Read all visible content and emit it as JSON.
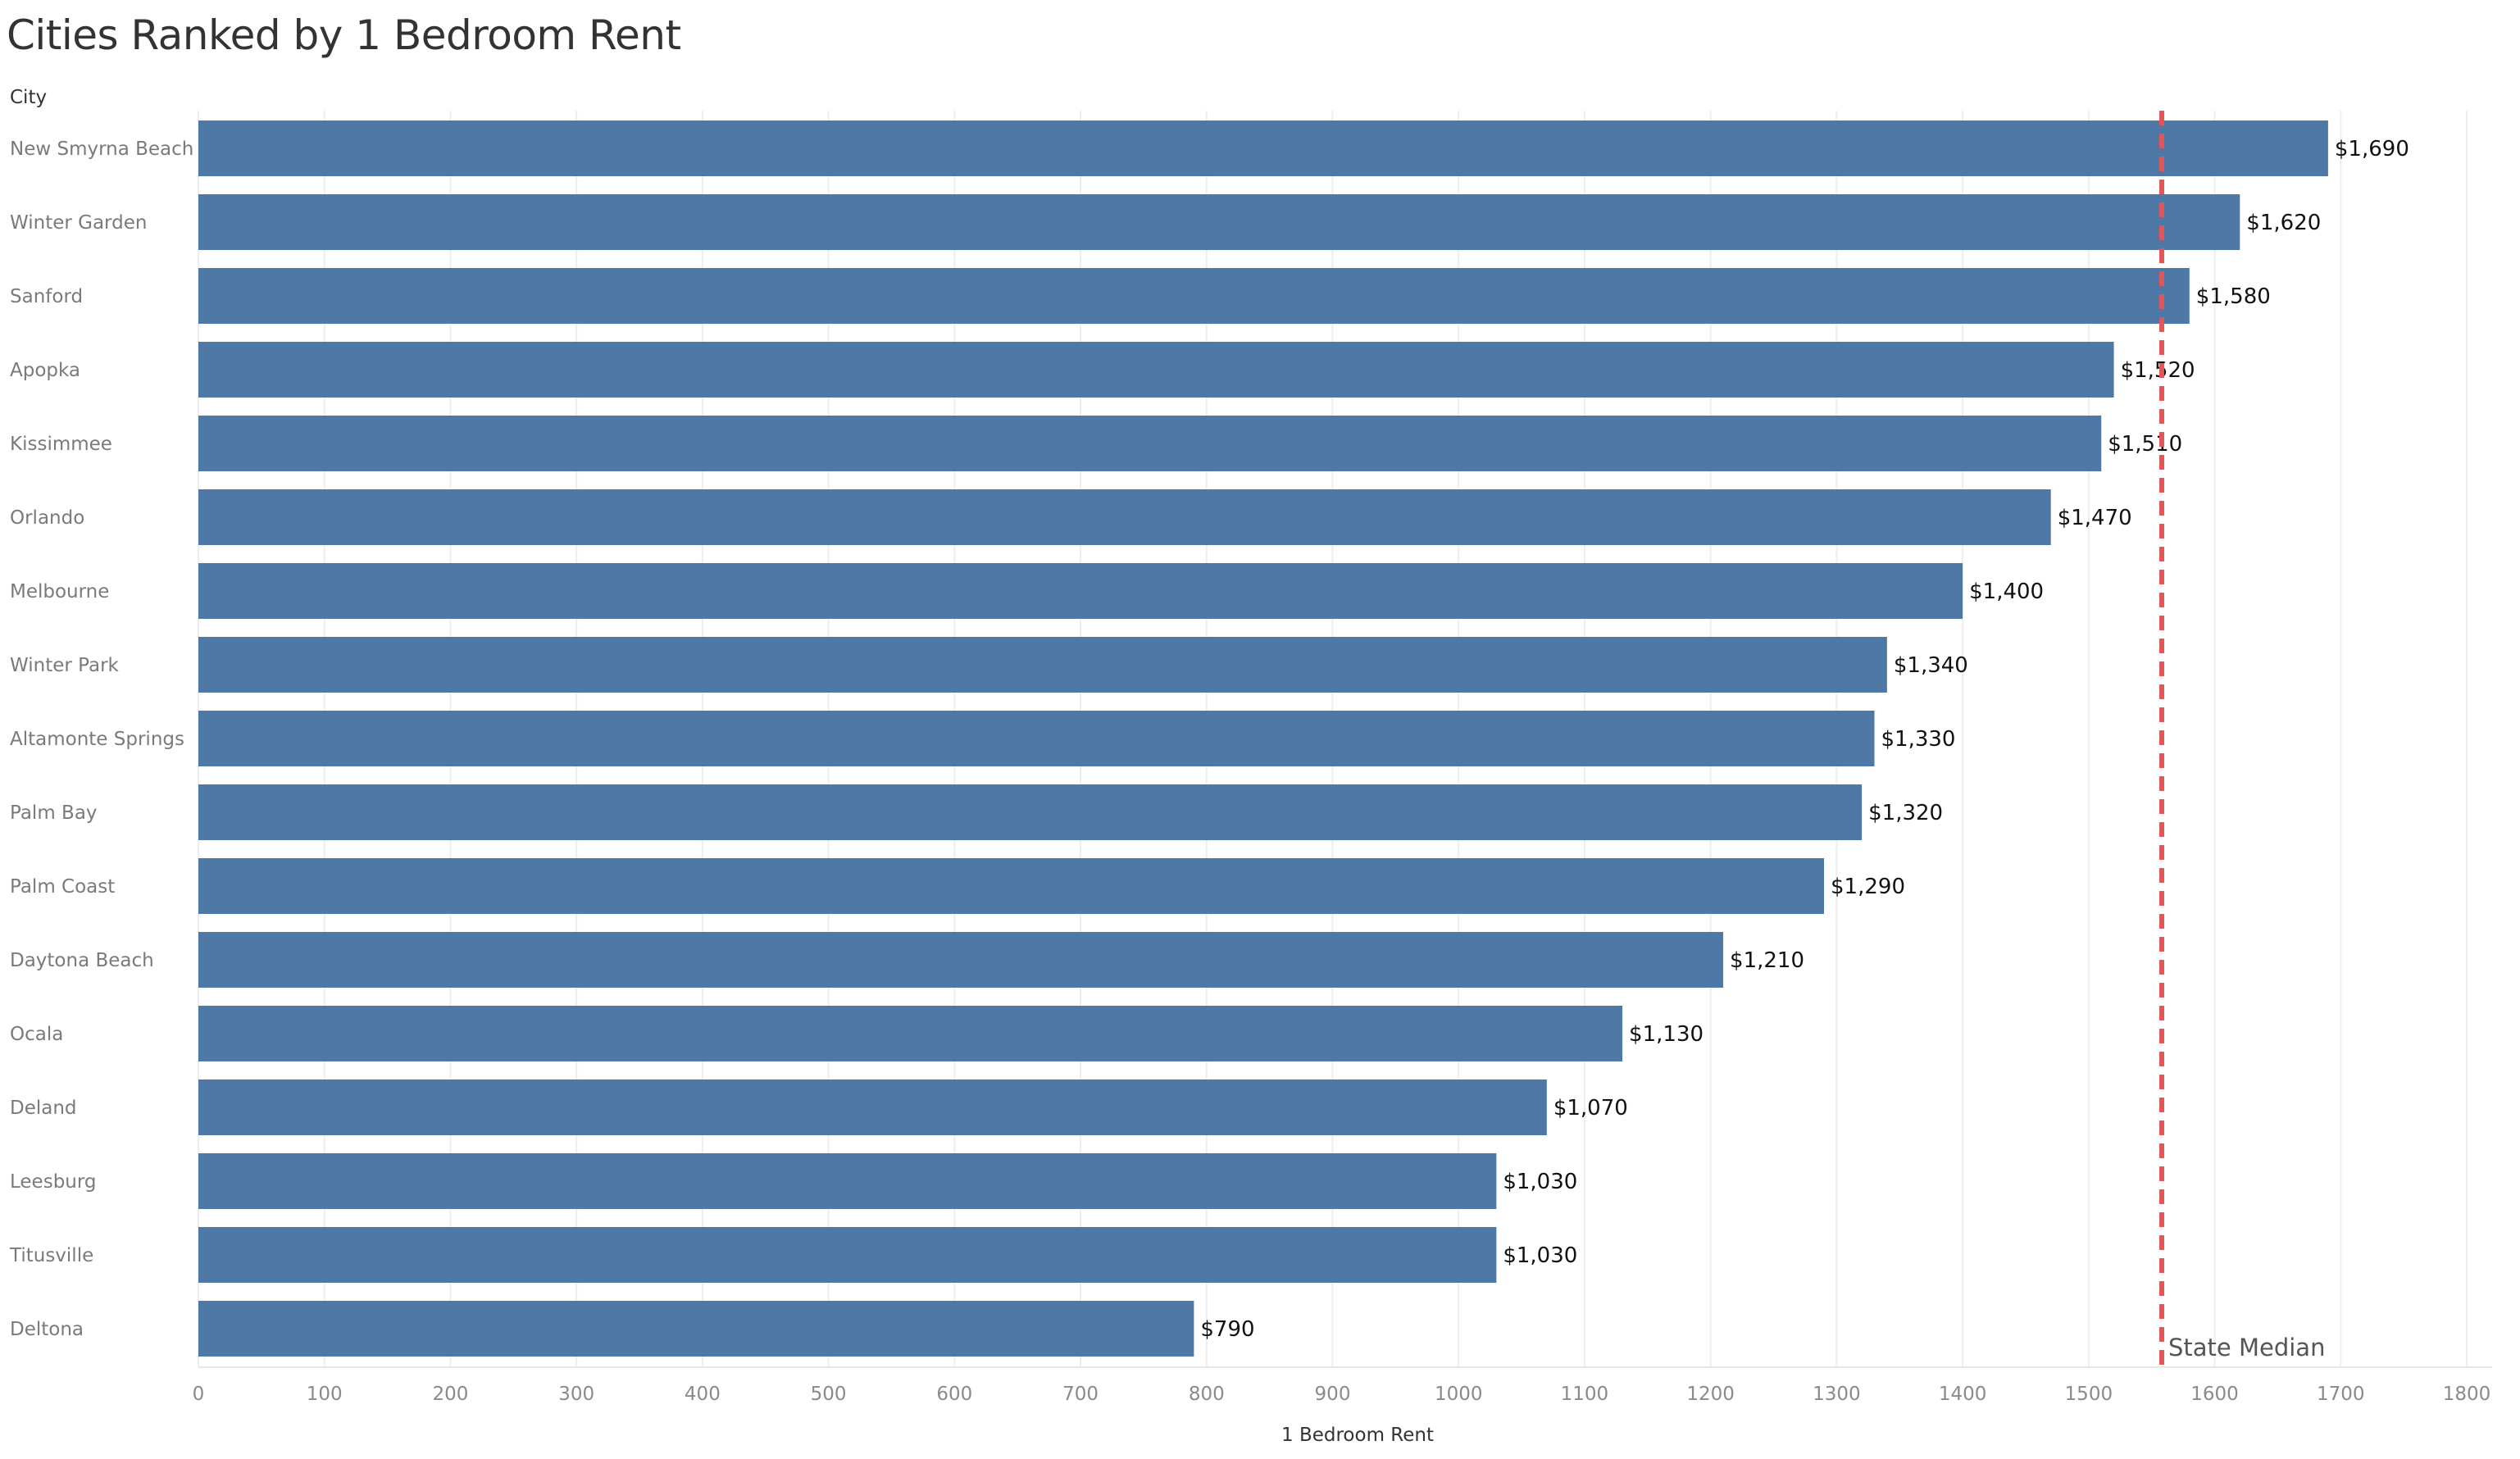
{
  "chart_data": {
    "type": "bar",
    "orientation": "horizontal",
    "title": "Cities Ranked by 1 Bedroom Rent",
    "category_header": "City",
    "xlabel": "1 Bedroom Rent",
    "xlim": [
      0,
      1800
    ],
    "xticks": [
      0,
      100,
      200,
      300,
      400,
      500,
      600,
      700,
      800,
      900,
      1000,
      1100,
      1200,
      1300,
      1400,
      1500,
      1600,
      1700,
      1800
    ],
    "grid": true,
    "categories": [
      "New Smyrna Beach",
      "Winter Garden",
      "Sanford",
      "Apopka",
      "Kissimmee",
      "Orlando",
      "Melbourne",
      "Winter Park",
      "Altamonte Springs",
      "Palm Bay",
      "Palm Coast",
      "Daytona Beach",
      "Ocala",
      "Deland",
      "Leesburg",
      "Titusville",
      "Deltona"
    ],
    "values": [
      1690,
      1620,
      1580,
      1520,
      1510,
      1470,
      1400,
      1340,
      1330,
      1320,
      1290,
      1210,
      1130,
      1070,
      1030,
      1030,
      790
    ],
    "value_labels": [
      "$1,690",
      "$1,620",
      "$1,580",
      "$1,520",
      "$1,510",
      "$1,470",
      "$1,400",
      "$1,340",
      "$1,330",
      "$1,320",
      "$1,290",
      "$1,210",
      "$1,130",
      "$1,070",
      "$1,030",
      "$1,030",
      "$790"
    ],
    "reference_line": {
      "label": "State Median",
      "value": 1558,
      "style": "dashed",
      "color": "#e15759"
    },
    "bar_color": "#4e79a7"
  }
}
